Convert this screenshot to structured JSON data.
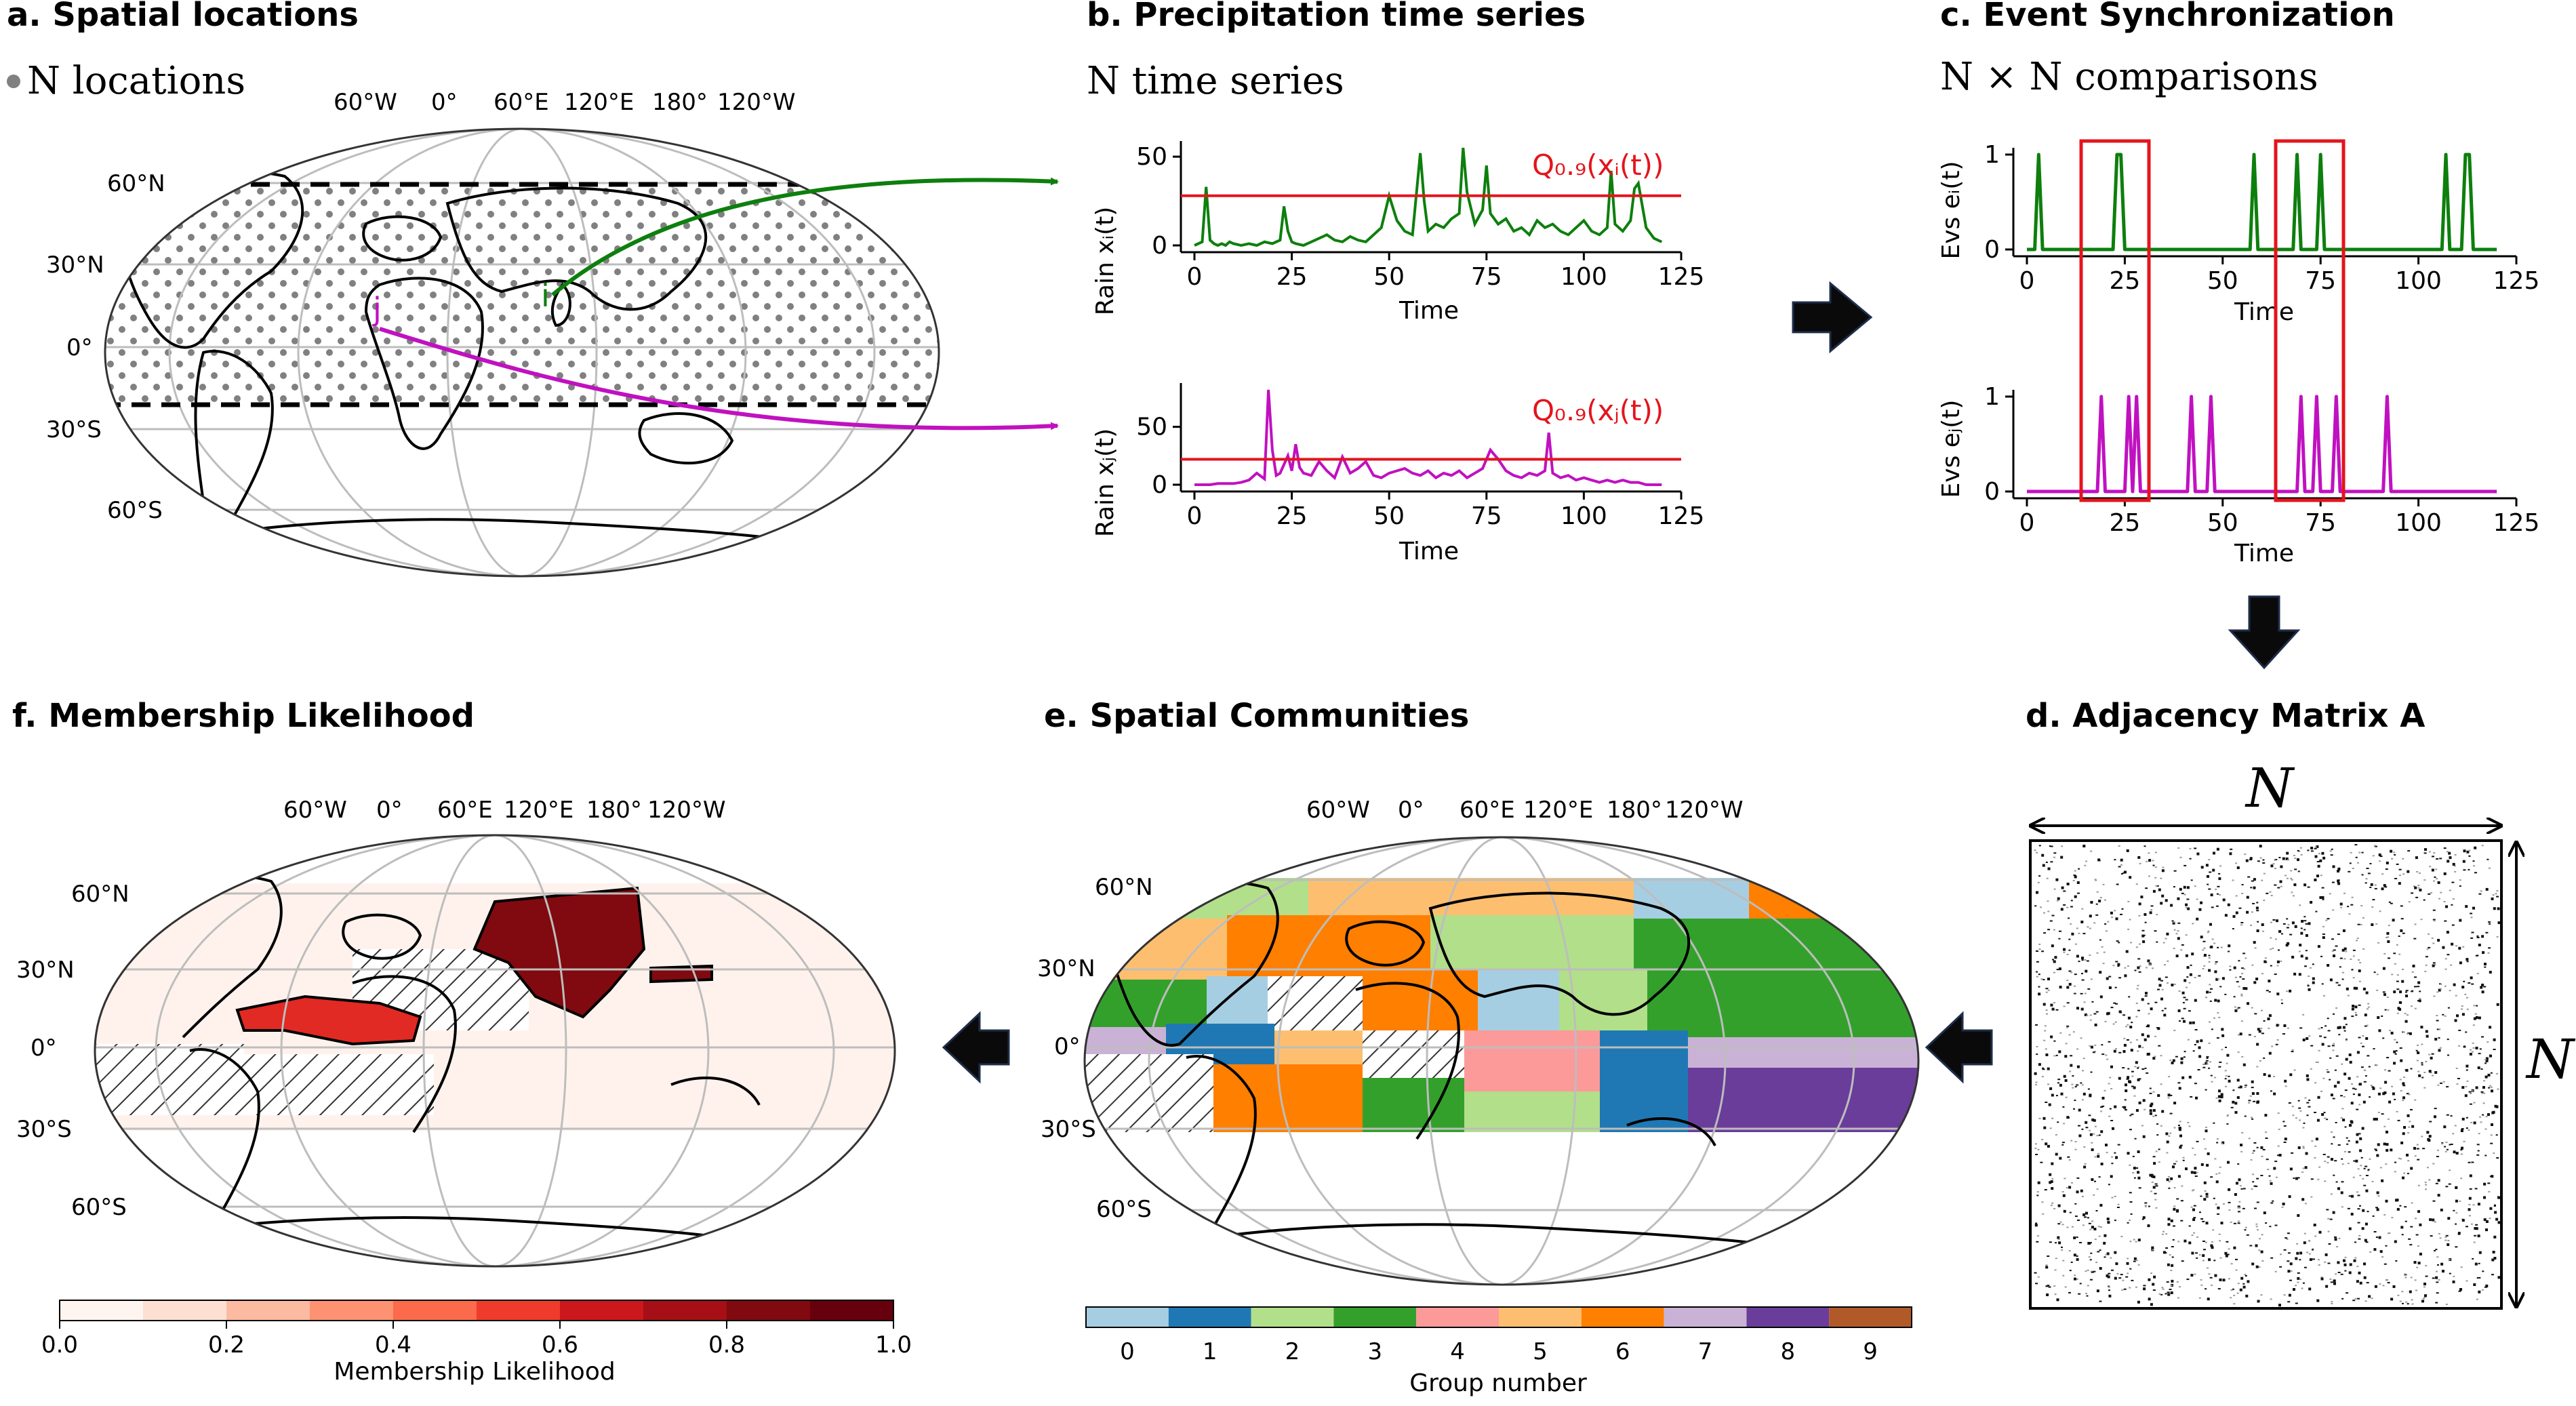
{
  "colors": {
    "green": "#0d7f0d",
    "magenta": "#c011c0",
    "red": "#e4141c",
    "grey_point": "#808080"
  },
  "panel_a": {
    "title": "a. Spatial locations",
    "subtitle": "N locations",
    "lon_labels": [
      "60°W",
      "0°",
      "60°E",
      "120°E",
      "180°",
      "120°W"
    ],
    "lat_labels": [
      "60°N",
      "30°N",
      "0°",
      "30°S",
      "60°S"
    ],
    "point_i": "i",
    "point_j": "j",
    "icons": [
      "grey-point-icon"
    ]
  },
  "panel_b": {
    "title": "b. Precipitation time series",
    "subtitle": "N time series",
    "top_ylabel": "Rain xᵢ(t)",
    "bottom_ylabel": "Rain xⱼ(t)",
    "xlabel": "Time",
    "top_threshold_label": "Q₀.₉(xᵢ(t))",
    "bottom_threshold_label": "Q₀.₉(xⱼ(t))"
  },
  "panel_c": {
    "title": "c. Event Synchronization",
    "subtitle": "N × N comparisons",
    "top_ylabel": "Evs eᵢ(t)",
    "bottom_ylabel": "Evs eⱼ(t)",
    "xlabel": "Time"
  },
  "panel_d": {
    "title": "d. Adjacency Matrix A",
    "n_horizontal": "N",
    "n_vertical": "N"
  },
  "panel_e": {
    "title": "e. Spatial Communities",
    "lon_labels": [
      "60°W",
      "0°",
      "60°E",
      "120°E",
      "180°",
      "120°W"
    ],
    "lat_labels": [
      "60°N",
      "30°N",
      "0°",
      "30°S",
      "60°S"
    ],
    "colorbar_label": "Group number",
    "colorbar_ticks": [
      "0",
      "1",
      "2",
      "3",
      "4",
      "5",
      "6",
      "7",
      "8",
      "9"
    ],
    "group_colors": [
      "#a6cee3",
      "#1f78b4",
      "#b2df8a",
      "#33a02c",
      "#fb9a99",
      "#fdbf6f",
      "#ff7f00",
      "#cab2d6",
      "#6a3d9a",
      "#b15928"
    ]
  },
  "panel_f": {
    "title": "f. Membership Likelihood",
    "lon_labels": [
      "60°W",
      "0°",
      "60°E",
      "120°E",
      "180°",
      "120°W"
    ],
    "lat_labels": [
      "60°N",
      "30°N",
      "0°",
      "30°S",
      "60°S"
    ],
    "colorbar_label": "Membership Likelihood",
    "colorbar_ticks": [
      "0.0",
      "0.2",
      "0.4",
      "0.6",
      "0.8",
      "1.0"
    ],
    "colorbar_colors": [
      "#fff5f0",
      "#fee0d2",
      "#fcbba1",
      "#fc9272",
      "#fb6a4a",
      "#ef3b2c",
      "#cb181d",
      "#a50f15",
      "#800a0f",
      "#67000d"
    ]
  },
  "chart_data": [
    {
      "type": "line",
      "panel": "b-top",
      "series": [
        {
          "x": [
            0,
            1,
            2,
            3,
            4,
            5,
            6,
            7,
            8,
            9,
            10,
            12,
            14,
            16,
            18,
            20,
            22,
            23,
            24,
            25,
            26,
            28,
            30,
            32,
            34,
            36,
            38,
            40,
            42,
            44,
            46,
            48,
            50,
            52,
            54,
            56,
            58,
            59,
            60,
            62,
            64,
            66,
            68,
            69,
            70,
            72,
            74,
            75,
            76,
            78,
            80,
            82,
            84,
            86,
            88,
            90,
            92,
            94,
            96,
            98,
            100,
            102,
            104,
            106,
            107,
            108,
            110,
            112,
            113,
            114,
            116,
            118,
            120
          ],
          "y": [
            0,
            1,
            2,
            33,
            3,
            1,
            0,
            1,
            0,
            2,
            1,
            0,
            1,
            0,
            2,
            1,
            3,
            22,
            8,
            2,
            1,
            0,
            2,
            4,
            6,
            3,
            2,
            5,
            3,
            2,
            6,
            10,
            28,
            14,
            8,
            6,
            52,
            25,
            8,
            12,
            10,
            15,
            18,
            55,
            30,
            12,
            20,
            45,
            18,
            12,
            15,
            8,
            10,
            6,
            14,
            10,
            12,
            8,
            6,
            10,
            14,
            8,
            6,
            10,
            42,
            12,
            8,
            14,
            32,
            35,
            10,
            4,
            2
          ]
        }
      ],
      "threshold": 28,
      "xlabel": "Time",
      "ylim": [
        0,
        55
      ],
      "xticks": [
        0,
        25,
        50,
        75,
        100,
        125
      ],
      "yticks": [
        0,
        50
      ]
    },
    {
      "type": "line",
      "panel": "b-bottom",
      "series": [
        {
          "x": [
            0,
            2,
            4,
            6,
            8,
            10,
            12,
            14,
            16,
            18,
            19,
            20,
            21,
            22,
            24,
            25,
            26,
            27,
            28,
            30,
            32,
            34,
            36,
            38,
            40,
            42,
            44,
            46,
            48,
            50,
            52,
            54,
            56,
            58,
            60,
            62,
            64,
            66,
            68,
            70,
            72,
            74,
            76,
            78,
            80,
            82,
            84,
            86,
            88,
            90,
            91,
            92,
            94,
            96,
            98,
            100,
            102,
            104,
            106,
            108,
            110,
            112,
            114,
            116,
            118,
            120
          ],
          "y": [
            0,
            0,
            0,
            1,
            1,
            1,
            2,
            4,
            10,
            5,
            82,
            30,
            8,
            10,
            25,
            12,
            35,
            15,
            10,
            8,
            20,
            12,
            6,
            24,
            10,
            14,
            20,
            8,
            6,
            10,
            12,
            14,
            10,
            8,
            12,
            6,
            10,
            8,
            12,
            6,
            10,
            14,
            30,
            22,
            12,
            8,
            6,
            10,
            8,
            12,
            45,
            10,
            6,
            8,
            4,
            6,
            4,
            2,
            4,
            2,
            4,
            2,
            2,
            0,
            0,
            0
          ]
        }
      ],
      "threshold": 22,
      "xlabel": "Time",
      "ylim": [
        0,
        82
      ],
      "xticks": [
        0,
        25,
        50,
        75,
        100,
        125
      ],
      "yticks": [
        0,
        50
      ]
    },
    {
      "type": "line",
      "panel": "c-top",
      "series": [
        {
          "event_times": [
            3,
            23,
            24,
            58,
            69,
            75,
            107,
            112,
            113
          ]
        }
      ],
      "xlabel": "Time",
      "ylim": [
        0,
        1
      ],
      "xticks": [
        0,
        25,
        50,
        75,
        100,
        125
      ],
      "yticks": [
        0,
        1
      ]
    },
    {
      "type": "line",
      "panel": "c-bottom",
      "series": [
        {
          "event_times": [
            19,
            26,
            28,
            42,
            47,
            70,
            74,
            79,
            92
          ]
        }
      ],
      "xlabel": "Time",
      "ylim": [
        0,
        1
      ],
      "xticks": [
        0,
        25,
        50,
        75,
        100,
        125
      ],
      "yticks": [
        0,
        1
      ]
    }
  ]
}
